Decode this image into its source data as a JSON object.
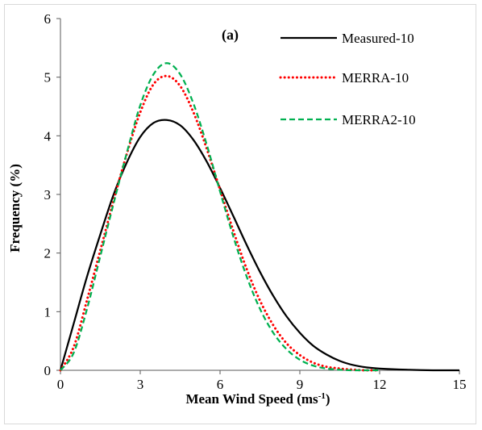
{
  "chart_data": {
    "type": "line",
    "panel_label": "(a)",
    "xlabel": "Mean Wind Speed (ms",
    "xlabel_sup": "-1",
    "xlabel_end": ")",
    "ylabel": "Frequency (%)",
    "xlim": [
      0,
      15
    ],
    "ylim": [
      0,
      6
    ],
    "xticks": [
      "0",
      "3",
      "6",
      "9",
      "12",
      "15"
    ],
    "yticks": [
      "0",
      "1",
      "2",
      "3",
      "4",
      "5",
      "6"
    ],
    "grid": false,
    "legend_position": "top-right",
    "series": [
      {
        "name": "Measured-10",
        "color": "#000000",
        "style": "solid",
        "x": [
          0,
          0.5,
          1,
          1.5,
          2,
          2.5,
          3,
          3.5,
          4,
          4.5,
          5,
          5.5,
          6,
          6.5,
          7,
          7.5,
          8,
          8.5,
          9,
          9.5,
          10,
          10.5,
          11,
          11.5,
          12,
          13,
          14,
          15
        ],
        "y": [
          0,
          0.8,
          1.6,
          2.32,
          3.0,
          3.55,
          3.98,
          4.22,
          4.27,
          4.18,
          3.93,
          3.56,
          3.11,
          2.63,
          2.14,
          1.68,
          1.27,
          0.92,
          0.64,
          0.42,
          0.27,
          0.16,
          0.09,
          0.05,
          0.03,
          0.01,
          0.0,
          0.0
        ]
      },
      {
        "name": "MERRA-10",
        "color": "#ff0000",
        "style": "dotted",
        "x": [
          0,
          0.5,
          1,
          1.5,
          2,
          2.5,
          3,
          3.5,
          4,
          4.5,
          5,
          5.5,
          6,
          6.5,
          7,
          7.5,
          8,
          8.5,
          9,
          9.5,
          10,
          10.5,
          11,
          11.5,
          12
        ],
        "y": [
          0,
          0.4,
          1.2,
          2.05,
          2.9,
          3.7,
          4.4,
          4.88,
          5.02,
          4.85,
          4.4,
          3.78,
          3.08,
          2.38,
          1.73,
          1.19,
          0.77,
          0.46,
          0.26,
          0.13,
          0.06,
          0.03,
          0.01,
          0.0,
          0.0
        ]
      },
      {
        "name": "MERRA2-10",
        "color": "#00b050",
        "style": "dashed",
        "x": [
          0,
          0.5,
          1,
          1.5,
          2,
          2.5,
          3,
          3.5,
          4,
          4.5,
          5,
          5.5,
          6,
          6.5,
          7,
          7.5,
          8,
          8.5,
          9,
          9.5,
          10,
          10.5,
          11,
          11.5,
          12
        ],
        "y": [
          0,
          0.3,
          1.05,
          1.95,
          2.85,
          3.72,
          4.52,
          5.05,
          5.24,
          5.05,
          4.55,
          3.85,
          3.05,
          2.28,
          1.6,
          1.05,
          0.64,
          0.36,
          0.18,
          0.08,
          0.03,
          0.01,
          0.0,
          0.0,
          0.0
        ]
      }
    ]
  }
}
